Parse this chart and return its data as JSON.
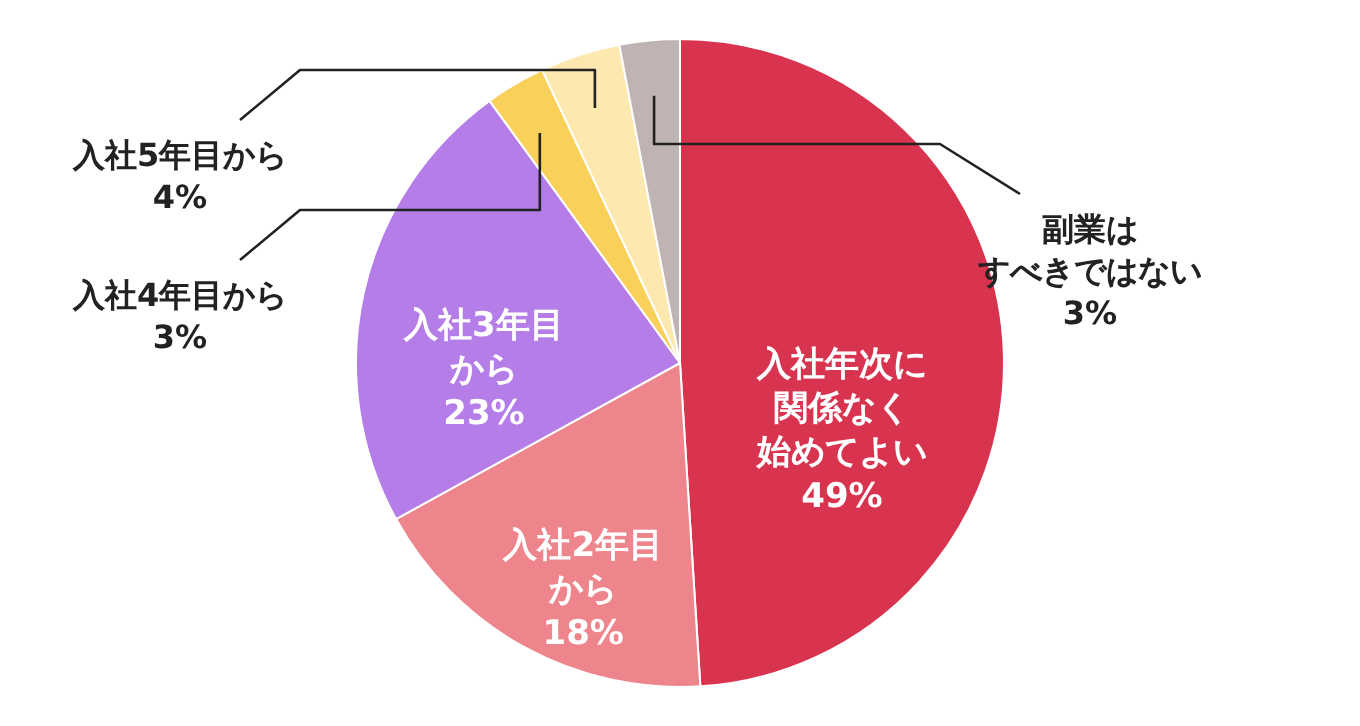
{
  "chart_data": {
    "type": "pie",
    "categories": [
      "入社年次に関係なく始めてよい",
      "入社2年目から",
      "入社3年目から",
      "入社4年目から",
      "入社5年目から",
      "副業はすべきではない"
    ],
    "values": [
      49,
      18,
      23,
      3,
      4,
      3
    ],
    "value_labels": [
      "49%",
      "18%",
      "23%",
      "3%",
      "4%",
      "3%"
    ],
    "colors": [
      "#d9344f",
      "#ee858c",
      "#b57de8",
      "#f9d05a",
      "#fde8b0",
      "#c0b3b3"
    ]
  }
}
